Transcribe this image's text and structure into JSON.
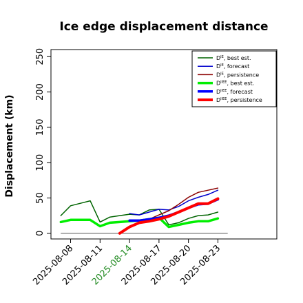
{
  "chart_data": {
    "type": "line",
    "title": "Ice edge displacement distance",
    "xlabel": "",
    "ylabel": "Displacement (km)",
    "ylim": [
      -8,
      260
    ],
    "yticks": [
      0,
      50,
      100,
      150,
      200,
      250
    ],
    "xlim": [
      "2025-08-06",
      "2025-08-29"
    ],
    "xticks": [
      "2025-08-08",
      "2025-08-11",
      "2025-08-14",
      "2025-08-17",
      "2025-08-20",
      "2025-08-23"
    ],
    "highlight_tick": "2025-08-14",
    "highlight_color": "#228b22",
    "grid": false,
    "legend_position": "top-right",
    "baseline": {
      "x": [
        "2025-08-07",
        "2025-08-24"
      ],
      "values": [
        0,
        0
      ],
      "color": "#555555"
    },
    "series": [
      {
        "name": "D^IE, best est.",
        "name_base": "D",
        "name_sup": "IE",
        "name_suffix": ", best est.",
        "color": "#006400",
        "line_width": 1.5,
        "x": [
          "2025-08-07",
          "2025-08-08",
          "2025-08-10",
          "2025-08-11",
          "2025-08-12",
          "2025-08-13",
          "2025-08-14",
          "2025-08-15",
          "2025-08-16",
          "2025-08-17",
          "2025-08-18",
          "2025-08-19",
          "2025-08-20",
          "2025-08-21",
          "2025-08-22",
          "2025-08-23"
        ],
        "values": [
          25,
          39,
          46,
          16,
          23,
          25,
          27,
          26,
          33,
          34,
          12,
          15,
          21,
          25,
          26,
          30
        ]
      },
      {
        "name": "D^IE, forecast",
        "name_base": "D",
        "name_sup": "IE",
        "name_suffix": ", forecast",
        "color": "#0000cd",
        "line_width": 1.5,
        "x": [
          "2025-08-14",
          "2025-08-15",
          "2025-08-16",
          "2025-08-17",
          "2025-08-18",
          "2025-08-19",
          "2025-08-20",
          "2025-08-21",
          "2025-08-22",
          "2025-08-23"
        ],
        "values": [
          28,
          26,
          30,
          34,
          33,
          38,
          46,
          51,
          55,
          61
        ]
      },
      {
        "name": "D^IE, persistence",
        "name_base": "D",
        "name_sup": "IE",
        "name_suffix": ", persistence",
        "color": "#8b0000",
        "line_width": 1.5,
        "x": [
          "2025-08-13",
          "2025-08-14",
          "2025-08-15",
          "2025-08-16",
          "2025-08-17",
          "2025-08-18",
          "2025-08-19",
          "2025-08-20",
          "2025-08-21",
          "2025-08-22",
          "2025-08-23"
        ],
        "values": [
          0,
          10,
          16,
          20,
          26,
          32,
          41,
          51,
          58,
          61,
          64
        ]
      },
      {
        "name": "D^IIEE, best est.",
        "name_base": "D",
        "name_sup": "IIEE",
        "name_suffix": ", best est.",
        "color": "#00ee00",
        "line_width": 3.5,
        "x": [
          "2025-08-07",
          "2025-08-08",
          "2025-08-10",
          "2025-08-11",
          "2025-08-12",
          "2025-08-13",
          "2025-08-14",
          "2025-08-15",
          "2025-08-16",
          "2025-08-17",
          "2025-08-18",
          "2025-08-19",
          "2025-08-20",
          "2025-08-21",
          "2025-08-22",
          "2025-08-23"
        ],
        "values": [
          16,
          19,
          19,
          10,
          15,
          16,
          17,
          18,
          20,
          22,
          9,
          12,
          15,
          17,
          17,
          21
        ]
      },
      {
        "name": "D^IIEE, forecast",
        "name_base": "D",
        "name_sup": "IIEE",
        "name_suffix": ", forecast",
        "color": "#0000ff",
        "line_width": 3.5,
        "x": [
          "2025-08-14",
          "2025-08-15",
          "2025-08-16",
          "2025-08-17",
          "2025-08-18",
          "2025-08-19",
          "2025-08-20",
          "2025-08-21",
          "2025-08-22",
          "2025-08-23"
        ],
        "values": [
          18,
          18,
          20,
          22,
          25,
          30,
          36,
          41,
          42,
          48
        ]
      },
      {
        "name": "D^IIEE, persistence",
        "name_base": "D",
        "name_sup": "IIEE",
        "name_suffix": ", persistence",
        "color": "#ff0000",
        "line_width": 4,
        "x": [
          "2025-08-13",
          "2025-08-14",
          "2025-08-15",
          "2025-08-16",
          "2025-08-17",
          "2025-08-18",
          "2025-08-19",
          "2025-08-20",
          "2025-08-21",
          "2025-08-22",
          "2025-08-23"
        ],
        "values": [
          0,
          9,
          15,
          17,
          20,
          24,
          30,
          36,
          42,
          42,
          49
        ]
      }
    ]
  }
}
